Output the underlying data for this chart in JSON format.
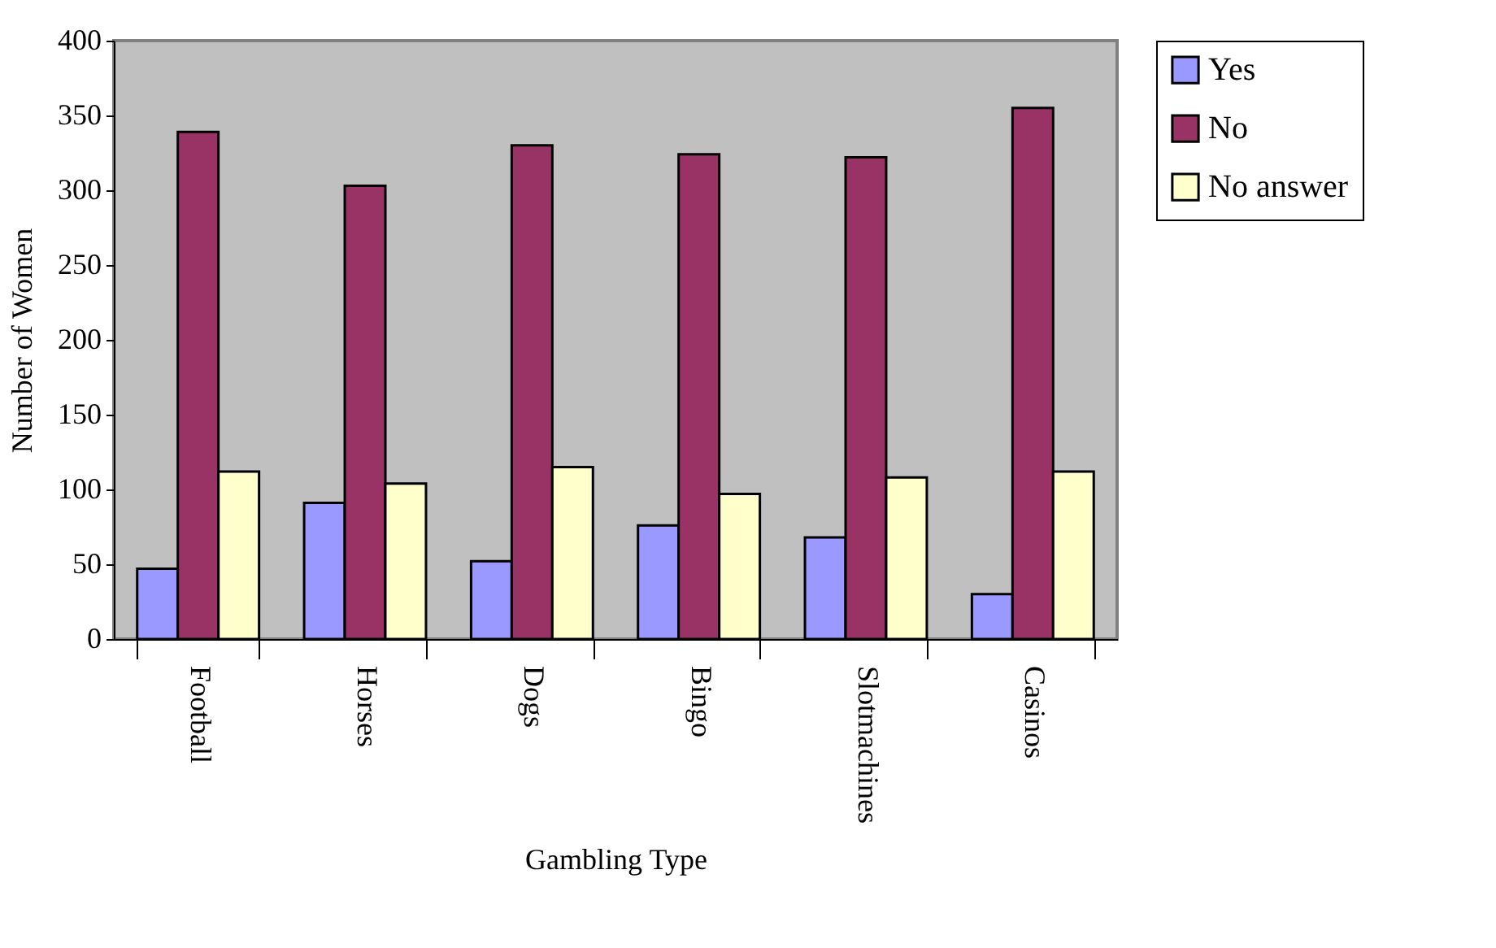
{
  "chart_data": {
    "type": "bar",
    "xlabel": "Gambling Type",
    "ylabel": "Number of Women",
    "categories": [
      "Football",
      "Horses",
      "Dogs",
      "Bingo",
      "Slotmachines",
      "Casinos"
    ],
    "series": [
      {
        "name": "Yes",
        "color": "#9999ff",
        "values": [
          47,
          91,
          52,
          76,
          68,
          30
        ]
      },
      {
        "name": "No",
        "color": "#993366",
        "values": [
          339,
          303,
          330,
          324,
          322,
          355
        ]
      },
      {
        "name": "No answer",
        "color": "#ffffcc",
        "values": [
          112,
          104,
          115,
          97,
          108,
          112
        ]
      }
    ],
    "ylim": [
      0,
      400
    ],
    "yticks": [
      0,
      50,
      100,
      150,
      200,
      250,
      300,
      350,
      400
    ],
    "grid": false,
    "legend": "right"
  }
}
